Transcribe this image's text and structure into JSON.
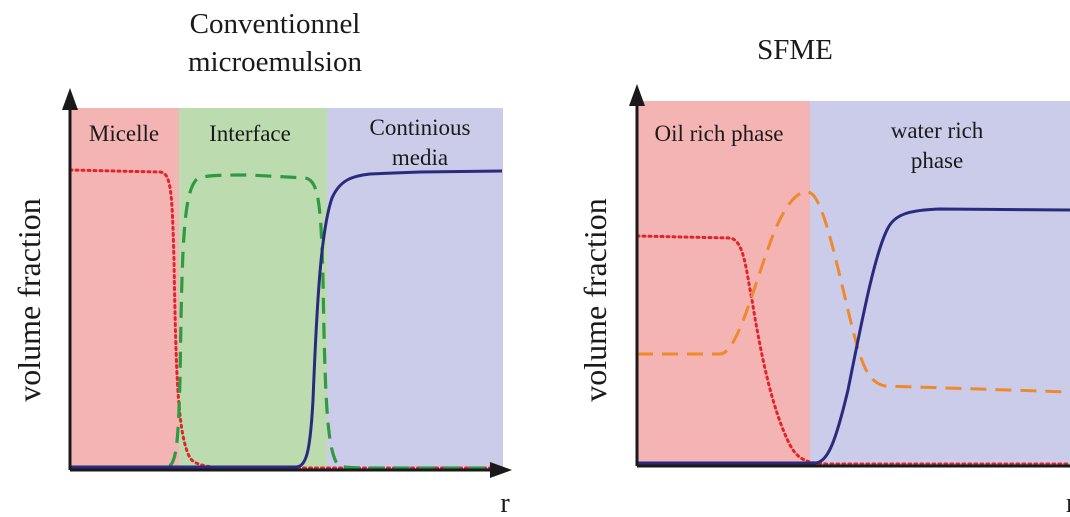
{
  "colors": {
    "region_red": "#f4b4b4",
    "region_green": "#bcdcb0",
    "region_blue": "#cbcce9",
    "curve_red": "#e0262b",
    "curve_green": "#2f9a3f",
    "curve_navy": "#2a2a7e",
    "curve_orange": "#ef8a2c",
    "axis": "#1a1a1a"
  },
  "left_panel": {
    "title_line1": "Conventionnel",
    "title_line2": "microemulsion",
    "regions": [
      {
        "label": "Micelle"
      },
      {
        "label": "Interface"
      },
      {
        "label": "Continious",
        "label_line2": "media"
      }
    ],
    "ylabel": "volume fraction",
    "xlabel": "r"
  },
  "right_panel": {
    "title": "SFME",
    "regions": [
      {
        "label": "Oil rich phase"
      },
      {
        "label": "water rich",
        "label_line2": "phase"
      }
    ],
    "ylabel": "volume fraction",
    "xlabel_partial": "r"
  }
}
